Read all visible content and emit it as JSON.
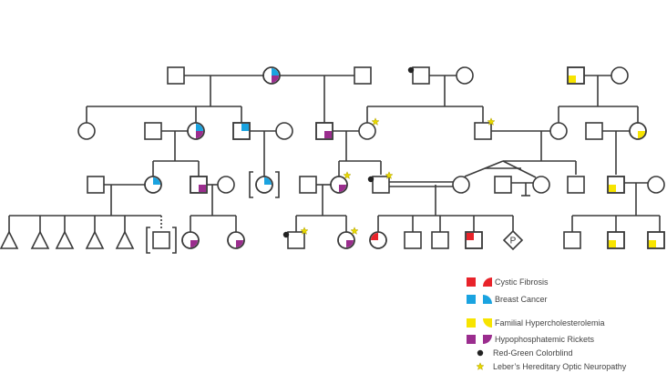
{
  "colors": {
    "line": "#3a3a3a",
    "cystic_fibrosis": "#e8232a",
    "breast_cancer": "#1aa3e0",
    "familial_hypercholesterolemia": "#f7e400",
    "hypophosphatemic_rickets": "#9b2d8e",
    "colorblind_marker": "#222222",
    "lhon_marker": "#e8d800"
  },
  "pedigree": {
    "pregnancy_label": "P"
  },
  "legend": {
    "items": [
      {
        "label": "Cystic Fibrosis",
        "key": "cystic_fibrosis",
        "icon": "square-and-quarter"
      },
      {
        "label": "Breast Cancer",
        "key": "breast_cancer",
        "icon": "square-and-quarter"
      },
      {
        "label": "Familial Hypercholesterolemia",
        "key": "familial_hypercholesterolemia",
        "icon": "square-and-quarter"
      },
      {
        "label": "Hypophosphatemic Rickets",
        "key": "hypophosphatemic_rickets",
        "icon": "square-and-quarter"
      },
      {
        "label": "Red-Green Colorblind",
        "key": "colorblind_marker",
        "icon": "dot"
      },
      {
        "label": "Leber’s Hereditary Optic Neuropathy",
        "key": "lhon_marker",
        "icon": "star"
      }
    ]
  }
}
